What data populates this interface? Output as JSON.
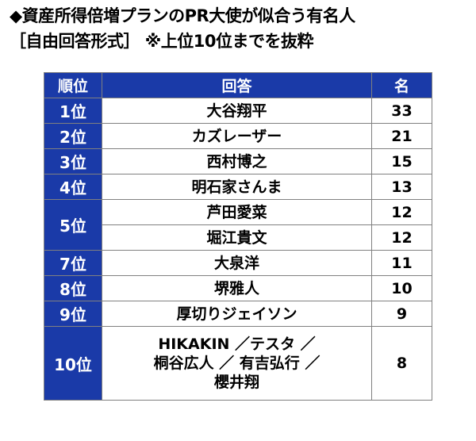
{
  "heading": {
    "title": "◆資産所得倍増プランのPR大使が似合う有名人",
    "subtitle": "［自由回答形式］ ※上位10位までを抜粋"
  },
  "table": {
    "headers": [
      "順位",
      "回答",
      "名"
    ],
    "groups": [
      {
        "rank": "1位",
        "entries": [
          {
            "name": "大谷翔平",
            "count": "33"
          }
        ]
      },
      {
        "rank": "2位",
        "entries": [
          {
            "name": "カズレーザー",
            "count": "21"
          }
        ]
      },
      {
        "rank": "3位",
        "entries": [
          {
            "name": "西村博之",
            "count": "15"
          }
        ]
      },
      {
        "rank": "4位",
        "entries": [
          {
            "name": "明石家さんま",
            "count": "13"
          }
        ]
      },
      {
        "rank": "5位",
        "entries": [
          {
            "name": "芦田愛菜",
            "count": "12"
          },
          {
            "name": "堀江貴文",
            "count": "12"
          }
        ]
      },
      {
        "rank": "7位",
        "entries": [
          {
            "name": "大泉洋",
            "count": "11"
          }
        ]
      },
      {
        "rank": "8位",
        "entries": [
          {
            "name": "堺雅人",
            "count": "10"
          }
        ]
      },
      {
        "rank": "9位",
        "entries": [
          {
            "name": "厚切りジェイソン",
            "count": "9"
          }
        ]
      },
      {
        "rank": "10位",
        "entries": [
          {
            "name_lines": [
              "HIKAKIN ／テスタ ／",
              "桐谷広人 ／ 有吉弘行 ／",
              "櫻井翔"
            ],
            "count": "8"
          }
        ]
      }
    ]
  },
  "colors": {
    "header_bg": "#1a3aa8",
    "header_text": "#ffffff",
    "border": "#808080"
  }
}
